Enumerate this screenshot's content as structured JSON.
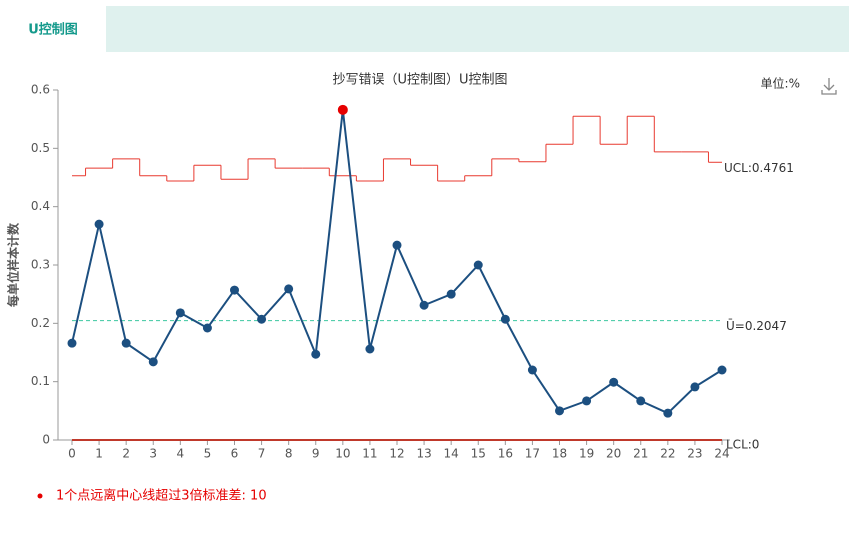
{
  "tab": {
    "label": "U控制图"
  },
  "chart_data": {
    "type": "line",
    "title": "抄写错误（U控制图）U控制图",
    "unit_label": "单位:%",
    "y_label": "每单位样本计数",
    "x": [
      0,
      1,
      2,
      3,
      4,
      5,
      6,
      7,
      8,
      9,
      10,
      11,
      12,
      13,
      14,
      15,
      16,
      17,
      18,
      19,
      20,
      21,
      22,
      23,
      24
    ],
    "xlim": [
      0,
      24
    ],
    "xticks": [
      0,
      1,
      2,
      3,
      4,
      5,
      6,
      7,
      8,
      9,
      10,
      11,
      12,
      13,
      14,
      15,
      16,
      17,
      18,
      19,
      20,
      21,
      22,
      23,
      24
    ],
    "ylim": [
      0,
      0.6
    ],
    "yticks": [
      0,
      0.1,
      0.2,
      0.3,
      0.4,
      0.5,
      0.6
    ],
    "series": [
      {
        "name": "U",
        "color": "#1c4f80",
        "values": [
          0.166,
          0.37,
          0.166,
          0.134,
          0.218,
          0.192,
          0.257,
          0.207,
          0.259,
          0.147,
          0.566,
          0.156,
          0.334,
          0.231,
          0.25,
          0.3,
          0.207,
          0.12,
          0.05,
          0.067,
          0.099,
          0.067,
          0.046,
          0.091,
          0.12
        ]
      }
    ],
    "highlight_points": [
      10
    ],
    "highlight_color": "#e60000",
    "ucl": {
      "color": "#e8392f",
      "label": "UCL:0.4761",
      "values": [
        0.453,
        0.466,
        0.482,
        0.453,
        0.444,
        0.471,
        0.447,
        0.482,
        0.466,
        0.466,
        0.453,
        0.444,
        0.482,
        0.471,
        0.444,
        0.453,
        0.482,
        0.477,
        0.507,
        0.555,
        0.507,
        0.555,
        0.494,
        0.494,
        0.4761
      ]
    },
    "center": {
      "color": "#3cc8a0",
      "label": "Ū=0.2047",
      "value": 0.2047
    },
    "lcl": {
      "color": "#c0392b",
      "label": "LCL:0",
      "value": 0
    },
    "note": "1个点远离中心线超过3倍标准差: 10"
  }
}
